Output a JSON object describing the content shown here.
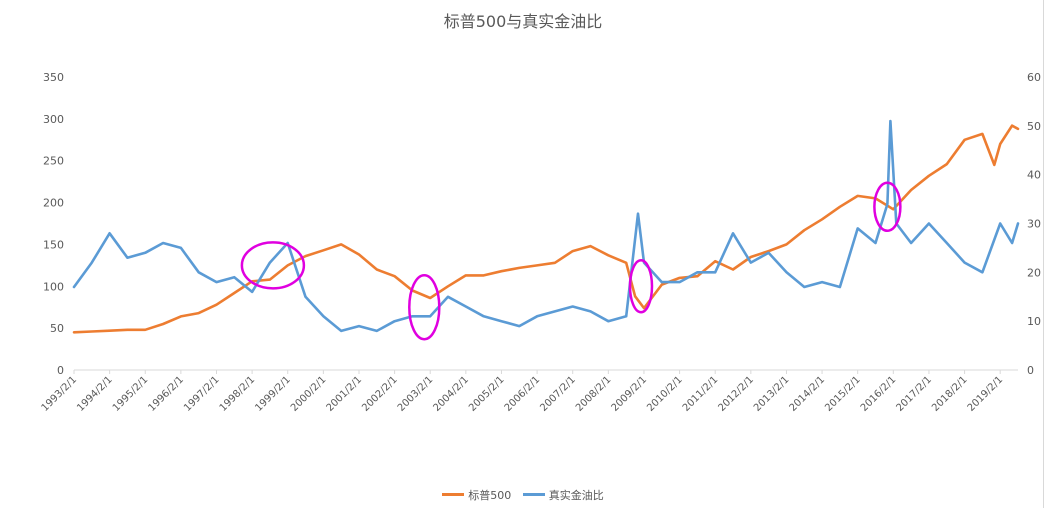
{
  "chart_data": {
    "type": "line",
    "title": "标普500与真实金油比",
    "x_dates": [
      "1993/2/1",
      "1994/2/1",
      "1995/2/1",
      "1996/2/1",
      "1997/2/1",
      "1998/2/1",
      "1999/2/1",
      "2000/2/1",
      "2001/2/1",
      "2002/2/1",
      "2003/2/1",
      "2004/2/1",
      "2005/2/1",
      "2006/2/1",
      "2007/2/1",
      "2008/2/1",
      "2009/2/1",
      "2010/2/1",
      "2011/2/1",
      "2012/2/1",
      "2013/2/1",
      "2014/2/1",
      "2015/2/1",
      "2016/2/1",
      "2017/2/1",
      "2018/2/1",
      "2019/2/1"
    ],
    "left_axis": {
      "min": 0,
      "max": 350,
      "ticks": [
        0,
        50,
        100,
        150,
        200,
        250,
        300,
        350
      ]
    },
    "right_axis": {
      "min": 0,
      "max": 60,
      "ticks": [
        0,
        10,
        20,
        30,
        40,
        50,
        60
      ]
    },
    "grid": false,
    "legend_position": "bottom",
    "series": [
      {
        "name": "标普500",
        "axis": "left",
        "color": "#ED7D31",
        "points": [
          [
            "1993/2/1",
            45
          ],
          [
            "1993/8/1",
            46
          ],
          [
            "1994/2/1",
            47
          ],
          [
            "1994/8/1",
            48
          ],
          [
            "1995/2/1",
            48
          ],
          [
            "1995/8/1",
            55
          ],
          [
            "1996/2/1",
            64
          ],
          [
            "1996/8/1",
            68
          ],
          [
            "1997/2/1",
            78
          ],
          [
            "1997/8/1",
            92
          ],
          [
            "1998/2/1",
            106
          ],
          [
            "1998/8/1",
            108
          ],
          [
            "1999/2/1",
            125
          ],
          [
            "1999/8/1",
            136
          ],
          [
            "2000/2/1",
            143
          ],
          [
            "2000/8/1",
            150
          ],
          [
            "2001/2/1",
            138
          ],
          [
            "2001/8/1",
            120
          ],
          [
            "2002/2/1",
            112
          ],
          [
            "2002/8/1",
            95
          ],
          [
            "2003/2/1",
            86
          ],
          [
            "2003/8/1",
            100
          ],
          [
            "2004/2/1",
            113
          ],
          [
            "2004/8/1",
            113
          ],
          [
            "2005/2/1",
            118
          ],
          [
            "2005/8/1",
            122
          ],
          [
            "2006/2/1",
            125
          ],
          [
            "2006/8/1",
            128
          ],
          [
            "2007/2/1",
            142
          ],
          [
            "2007/8/1",
            148
          ],
          [
            "2008/2/1",
            137
          ],
          [
            "2008/8/1",
            128
          ],
          [
            "2008/11/1",
            88
          ],
          [
            "2009/2/1",
            74
          ],
          [
            "2009/8/1",
            102
          ],
          [
            "2010/2/1",
            110
          ],
          [
            "2010/8/1",
            112
          ],
          [
            "2011/2/1",
            130
          ],
          [
            "2011/8/1",
            120
          ],
          [
            "2012/2/1",
            135
          ],
          [
            "2012/8/1",
            142
          ],
          [
            "2013/2/1",
            150
          ],
          [
            "2013/8/1",
            167
          ],
          [
            "2014/2/1",
            180
          ],
          [
            "2014/8/1",
            195
          ],
          [
            "2015/2/1",
            208
          ],
          [
            "2015/8/1",
            205
          ],
          [
            "2016/2/1",
            192
          ],
          [
            "2016/8/1",
            215
          ],
          [
            "2017/2/1",
            232
          ],
          [
            "2017/8/1",
            246
          ],
          [
            "2018/2/1",
            275
          ],
          [
            "2018/8/1",
            282
          ],
          [
            "2018/12/1",
            245
          ],
          [
            "2019/2/1",
            270
          ],
          [
            "2019/6/1",
            292
          ],
          [
            "2019/8/1",
            288
          ]
        ]
      },
      {
        "name": "真实金油比",
        "axis": "right",
        "color": "#5B9BD5",
        "points": [
          [
            "1993/2/1",
            17
          ],
          [
            "1993/8/1",
            22
          ],
          [
            "1994/2/1",
            28
          ],
          [
            "1994/8/1",
            23
          ],
          [
            "1995/2/1",
            24
          ],
          [
            "1995/8/1",
            26
          ],
          [
            "1996/2/1",
            25
          ],
          [
            "1996/8/1",
            20
          ],
          [
            "1997/2/1",
            18
          ],
          [
            "1997/8/1",
            19
          ],
          [
            "1998/2/1",
            16
          ],
          [
            "1998/8/1",
            22
          ],
          [
            "1999/2/1",
            26
          ],
          [
            "1999/8/1",
            15
          ],
          [
            "2000/2/1",
            11
          ],
          [
            "2000/8/1",
            8
          ],
          [
            "2001/2/1",
            9
          ],
          [
            "2001/8/1",
            8
          ],
          [
            "2002/2/1",
            10
          ],
          [
            "2002/8/1",
            11
          ],
          [
            "2003/2/1",
            11
          ],
          [
            "2003/8/1",
            15
          ],
          [
            "2004/2/1",
            13
          ],
          [
            "2004/8/1",
            11
          ],
          [
            "2005/2/1",
            10
          ],
          [
            "2005/8/1",
            9
          ],
          [
            "2006/2/1",
            11
          ],
          [
            "2006/8/1",
            12
          ],
          [
            "2007/2/1",
            13
          ],
          [
            "2007/8/1",
            12
          ],
          [
            "2008/2/1",
            10
          ],
          [
            "2008/8/1",
            11
          ],
          [
            "2008/12/1",
            32
          ],
          [
            "2009/2/1",
            22
          ],
          [
            "2009/8/1",
            18
          ],
          [
            "2010/2/1",
            18
          ],
          [
            "2010/8/1",
            20
          ],
          [
            "2011/2/1",
            20
          ],
          [
            "2011/8/1",
            28
          ],
          [
            "2012/2/1",
            22
          ],
          [
            "2012/8/1",
            24
          ],
          [
            "2013/2/1",
            20
          ],
          [
            "2013/8/1",
            17
          ],
          [
            "2014/2/1",
            18
          ],
          [
            "2014/8/1",
            17
          ],
          [
            "2015/2/1",
            29
          ],
          [
            "2015/8/1",
            26
          ],
          [
            "2015/12/1",
            34
          ],
          [
            "2016/1/1",
            51
          ],
          [
            "2016/3/1",
            30
          ],
          [
            "2016/8/1",
            26
          ],
          [
            "2017/2/1",
            30
          ],
          [
            "2017/8/1",
            26
          ],
          [
            "2018/2/1",
            22
          ],
          [
            "2018/8/1",
            20
          ],
          [
            "2019/2/1",
            30
          ],
          [
            "2019/6/1",
            26
          ],
          [
            "2019/8/1",
            30
          ]
        ]
      }
    ],
    "annotations": [
      {
        "shape": "ellipse",
        "color": "#E000E0",
        "around_date": "1998/9/1",
        "around_value_left": 125
      },
      {
        "shape": "ellipse",
        "color": "#E000E0",
        "around_date": "2002/12/1",
        "around_value_left": 75
      },
      {
        "shape": "ellipse",
        "color": "#E000E0",
        "around_date": "2009/1/1",
        "around_value_left": 100
      },
      {
        "shape": "ellipse",
        "color": "#E000E0",
        "around_date": "2015/12/1",
        "around_value_left": 195
      }
    ]
  }
}
